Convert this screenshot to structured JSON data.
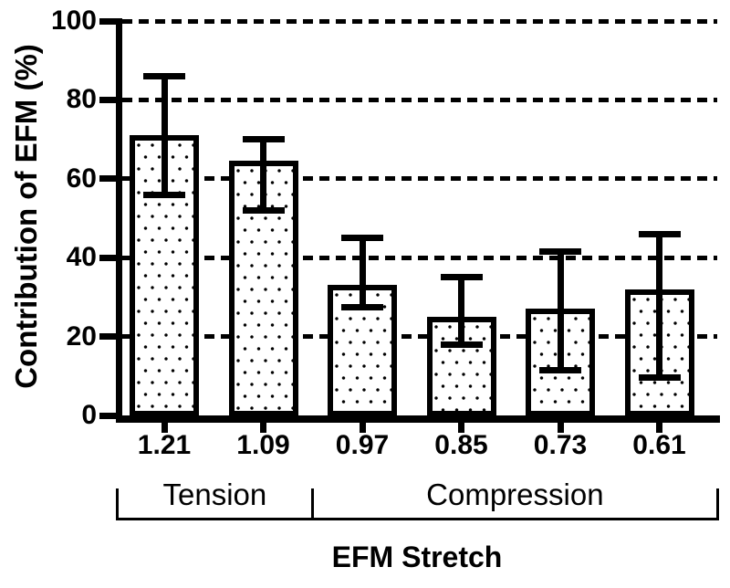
{
  "figure": {
    "background_color": "#ffffff",
    "ink_color": "#000000"
  },
  "chart_data": {
    "type": "bar",
    "title": "",
    "xlabel": "EFM Stretch",
    "ylabel": "Contribution of EFM (%)",
    "categories": [
      "1.21",
      "1.09",
      "0.97",
      "0.85",
      "0.73",
      "0.61"
    ],
    "values": [
      71,
      64.5,
      33,
      25,
      27,
      32
    ],
    "error_upper": [
      86,
      70,
      45,
      35,
      41.5,
      46
    ],
    "error_lower": [
      56,
      52,
      27.5,
      18,
      11.5,
      9.5
    ],
    "ylim": [
      0,
      100
    ],
    "yticks": [
      0,
      20,
      40,
      60,
      80,
      100
    ],
    "ytick_labels": [
      "0",
      "20",
      "40",
      "60",
      "80",
      "100"
    ],
    "grid": "horizontal dashed lines at 20, 40, 60, 80, 100",
    "legend_position": "none",
    "bar_style": "white fill with black stipple dots, thick black border",
    "groups": [
      {
        "label": "Tension",
        "first_category": "1.21",
        "last_category": "1.09"
      },
      {
        "label": "Compression",
        "first_category": "0.97",
        "last_category": "0.61"
      }
    ]
  }
}
